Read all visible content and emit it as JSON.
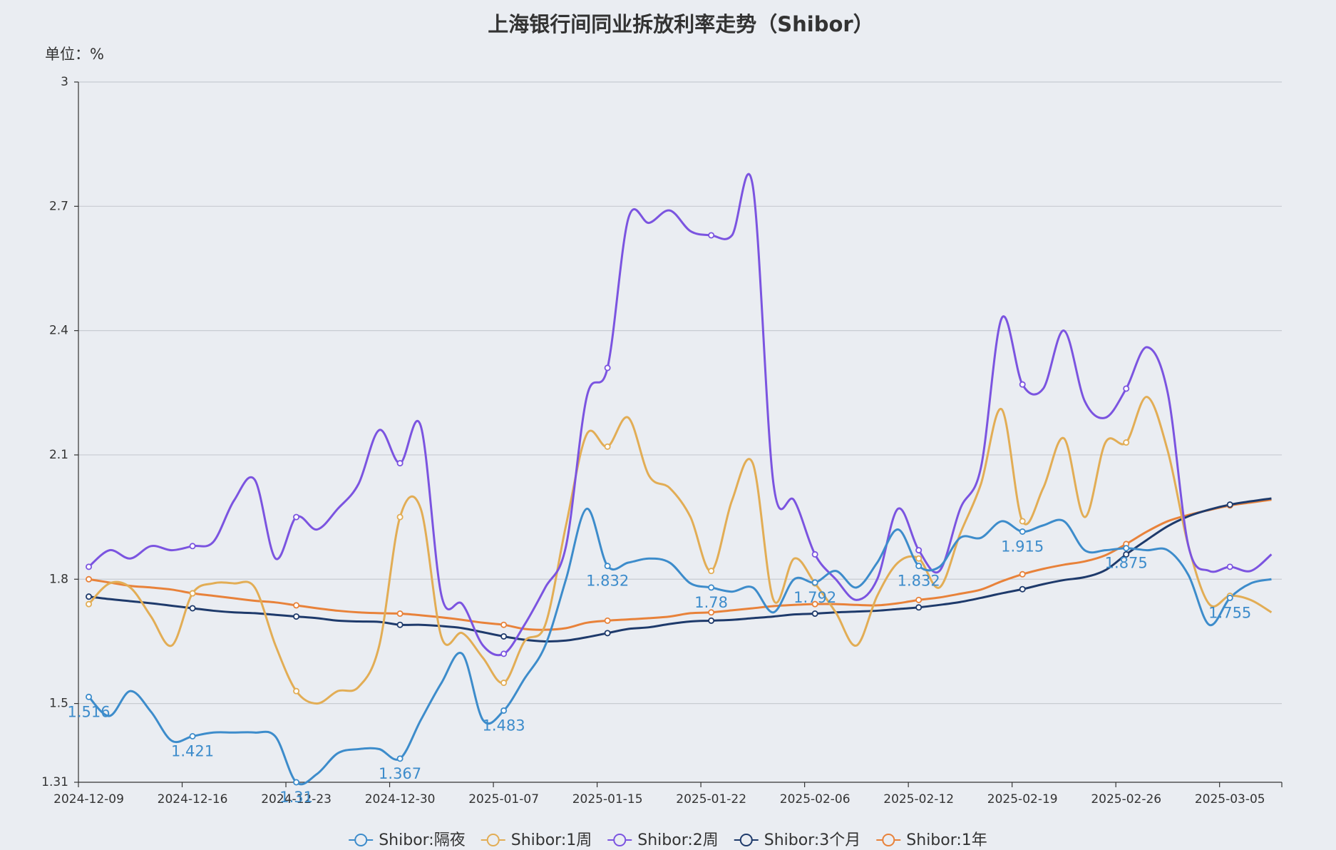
{
  "chart_data": {
    "type": "line",
    "title": "上海银行间同业拆放利率走势（Shibor）",
    "unit": "单位：%",
    "categories": [
      "2024-12-09",
      null,
      null,
      null,
      null,
      "2024-12-16",
      null,
      null,
      null,
      null,
      "2024-12-23",
      null,
      null,
      null,
      null,
      "2024-12-30",
      null,
      null,
      null,
      null,
      "2025-01-07",
      null,
      null,
      null,
      null,
      "2025-01-15",
      null,
      null,
      null,
      null,
      "2025-01-22",
      null,
      null,
      null,
      null,
      "2025-02-06",
      null,
      null,
      null,
      null,
      "2025-02-12",
      null,
      null,
      null,
      null,
      "2025-02-19",
      null,
      null,
      null,
      null,
      "2025-02-26",
      null,
      null,
      null,
      null,
      "2025-03-05",
      null,
      null
    ],
    "series": [
      {
        "name": "Shibor:隔夜",
        "color": "#3d8ccb",
        "values": [
          1.516,
          1.47,
          1.53,
          1.48,
          1.41,
          1.421,
          1.43,
          1.43,
          1.43,
          1.42,
          1.31,
          1.33,
          1.38,
          1.39,
          1.39,
          1.367,
          1.46,
          1.55,
          1.62,
          1.46,
          1.483,
          1.56,
          1.64,
          1.8,
          1.97,
          1.832,
          1.84,
          1.85,
          1.84,
          1.79,
          1.78,
          1.77,
          1.78,
          1.72,
          1.8,
          1.792,
          1.82,
          1.78,
          1.84,
          1.92,
          1.832,
          1.83,
          1.9,
          1.9,
          1.94,
          1.915,
          1.93,
          1.94,
          1.87,
          1.87,
          1.875,
          1.87,
          1.87,
          1.81,
          1.69,
          1.755,
          1.79,
          1.8
        ]
      },
      {
        "name": "Shibor:1周",
        "color": "#e2ad55",
        "values": [
          1.74,
          1.79,
          1.78,
          1.71,
          1.64,
          1.766,
          1.79,
          1.79,
          1.78,
          1.64,
          1.53,
          1.5,
          1.53,
          1.54,
          1.64,
          1.95,
          1.97,
          1.66,
          1.67,
          1.61,
          1.55,
          1.65,
          1.69,
          1.93,
          2.15,
          2.12,
          2.19,
          2.05,
          2.02,
          1.95,
          1.82,
          1.99,
          2.08,
          1.75,
          1.85,
          1.79,
          1.72,
          1.64,
          1.76,
          1.84,
          1.85,
          1.78,
          1.91,
          2.03,
          2.21,
          1.94,
          2.02,
          2.14,
          1.95,
          2.13,
          2.13,
          2.24,
          2.11,
          1.88,
          1.74,
          1.76,
          1.75,
          1.72
        ]
      },
      {
        "name": "Shibor:2周",
        "color": "#7b54e0",
        "values": [
          1.83,
          1.87,
          1.85,
          1.88,
          1.87,
          1.88,
          1.89,
          1.99,
          2.04,
          1.85,
          1.95,
          1.92,
          1.97,
          2.03,
          2.16,
          2.08,
          2.17,
          1.76,
          1.74,
          1.64,
          1.62,
          1.69,
          1.78,
          1.88,
          2.24,
          2.31,
          2.67,
          2.66,
          2.69,
          2.64,
          2.63,
          2.63,
          2.75,
          2.03,
          1.99,
          1.86,
          1.8,
          1.75,
          1.8,
          1.97,
          1.87,
          1.82,
          1.97,
          2.07,
          2.43,
          2.27,
          2.26,
          2.4,
          2.23,
          2.19,
          2.26,
          2.36,
          2.25,
          1.88,
          1.82,
          1.83,
          1.82,
          1.86
        ]
      },
      {
        "name": "Shibor:3个月",
        "color": "#1e3a6b",
        "values": [
          1.758,
          1.752,
          1.747,
          1.742,
          1.736,
          1.73,
          1.724,
          1.72,
          1.718,
          1.714,
          1.71,
          1.706,
          1.7,
          1.698,
          1.697,
          1.69,
          1.69,
          1.687,
          1.682,
          1.672,
          1.662,
          1.654,
          1.65,
          1.652,
          1.66,
          1.67,
          1.68,
          1.684,
          1.692,
          1.698,
          1.7,
          1.702,
          1.706,
          1.71,
          1.715,
          1.717,
          1.72,
          1.722,
          1.724,
          1.728,
          1.732,
          1.738,
          1.745,
          1.755,
          1.766,
          1.776,
          1.788,
          1.798,
          1.805,
          1.822,
          1.86,
          1.895,
          1.928,
          1.952,
          1.968,
          1.98,
          1.988,
          1.995
        ]
      },
      {
        "name": "Shibor:1年",
        "color": "#e8823a",
        "values": [
          1.8,
          1.792,
          1.784,
          1.78,
          1.775,
          1.766,
          1.76,
          1.754,
          1.748,
          1.744,
          1.737,
          1.73,
          1.724,
          1.72,
          1.718,
          1.717,
          1.713,
          1.708,
          1.702,
          1.695,
          1.69,
          1.68,
          1.678,
          1.682,
          1.695,
          1.7,
          1.703,
          1.706,
          1.71,
          1.718,
          1.72,
          1.725,
          1.73,
          1.735,
          1.738,
          1.74,
          1.74,
          1.738,
          1.737,
          1.742,
          1.75,
          1.756,
          1.765,
          1.775,
          1.795,
          1.812,
          1.825,
          1.835,
          1.843,
          1.858,
          1.885,
          1.915,
          1.94,
          1.955,
          1.967,
          1.978,
          1.985,
          1.992
        ]
      }
    ],
    "ylim": [
      1.31,
      3
    ],
    "yticks": [
      1.31,
      1.5,
      1.8,
      2.1,
      2.4,
      2.7,
      3
    ],
    "grid": true,
    "smooth": true,
    "legend": "bottom"
  }
}
